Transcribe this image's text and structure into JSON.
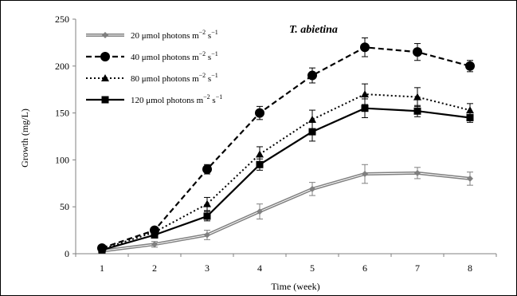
{
  "chart_data": {
    "type": "line",
    "title": "",
    "annotation": "T. abietina",
    "xlabel": "Time (week)",
    "ylabel": "Growth (mg/L)",
    "x": [
      1,
      2,
      3,
      4,
      5,
      6,
      7,
      8
    ],
    "x_tick_labels": [
      "1",
      "2",
      "3",
      "4",
      "5",
      "6",
      "7",
      "8"
    ],
    "ylim": [
      0,
      250
    ],
    "y_ticks": [
      0,
      50,
      100,
      150,
      200,
      250
    ],
    "y_tick_labels": [
      "0",
      "50",
      "100",
      "150",
      "200",
      "250"
    ],
    "grid": false,
    "legend_position": "top-left",
    "series": [
      {
        "name": "20 μmol photons m⁻² s⁻¹",
        "legend_main": "20 μmol photons m",
        "legend_exp1": "−2",
        "legend_mid": " s",
        "legend_exp2": "−1",
        "values": [
          3,
          10,
          20,
          45,
          69,
          85,
          86,
          80
        ],
        "errors": [
          2,
          3,
          5,
          8,
          7,
          10,
          6,
          7
        ],
        "color": "#808080",
        "line": "solid-double",
        "marker": "diamond"
      },
      {
        "name": "40 μmol photons m⁻² s⁻¹",
        "legend_main": "40 μmol photons m",
        "legend_exp1": "−2",
        "legend_mid": " s",
        "legend_exp2": "−1",
        "values": [
          6,
          25,
          90,
          150,
          190,
          220,
          215,
          200
        ],
        "errors": [
          2,
          3,
          5,
          7,
          8,
          10,
          9,
          6
        ],
        "color": "#000000",
        "line": "dashed",
        "marker": "circle"
      },
      {
        "name": "80 μmol photons m⁻² s⁻¹",
        "legend_main": "80 μmol photons m",
        "legend_exp1": "−2",
        "legend_mid": " s",
        "legend_exp2": "−1",
        "values": [
          5,
          23,
          53,
          106,
          143,
          170,
          167,
          153
        ],
        "errors": [
          2,
          3,
          7,
          8,
          10,
          11,
          10,
          7
        ],
        "color": "#000000",
        "line": "dotted",
        "marker": "triangle"
      },
      {
        "name": "120 μmol photons m⁻² s⁻¹",
        "legend_main": "120 μmol photons m",
        "legend_exp1": "−2",
        "legend_mid": " s",
        "legend_exp2": "−1",
        "values": [
          4,
          20,
          40,
          95,
          130,
          155,
          152,
          145
        ],
        "errors": [
          2,
          3,
          5,
          6,
          10,
          10,
          6,
          5
        ],
        "color": "#000000",
        "line": "solid",
        "marker": "square"
      }
    ]
  }
}
